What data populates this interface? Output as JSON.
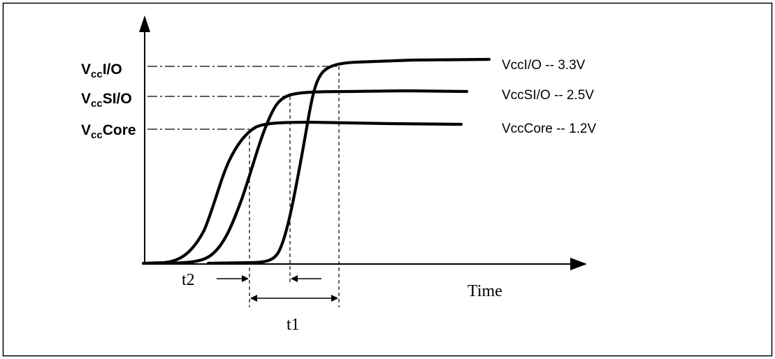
{
  "axes": {
    "x_label": "Time"
  },
  "levels": [
    {
      "base": "V",
      "sub": "cc",
      "suffix": "I/O"
    },
    {
      "base": "V",
      "sub": "cc",
      "suffix": "SI/O"
    },
    {
      "base": "V",
      "sub": "cc",
      "suffix": "Core"
    }
  ],
  "curves": [
    {
      "label": "VccI/O -- 3.3V"
    },
    {
      "label": "VccSI/O -- 2.5V"
    },
    {
      "label": "VccCore -- 1.2V"
    }
  ],
  "intervals": [
    {
      "label": "t2"
    },
    {
      "label": "t1"
    }
  ],
  "colors": {
    "line": "#000000",
    "background": "#ffffff"
  }
}
